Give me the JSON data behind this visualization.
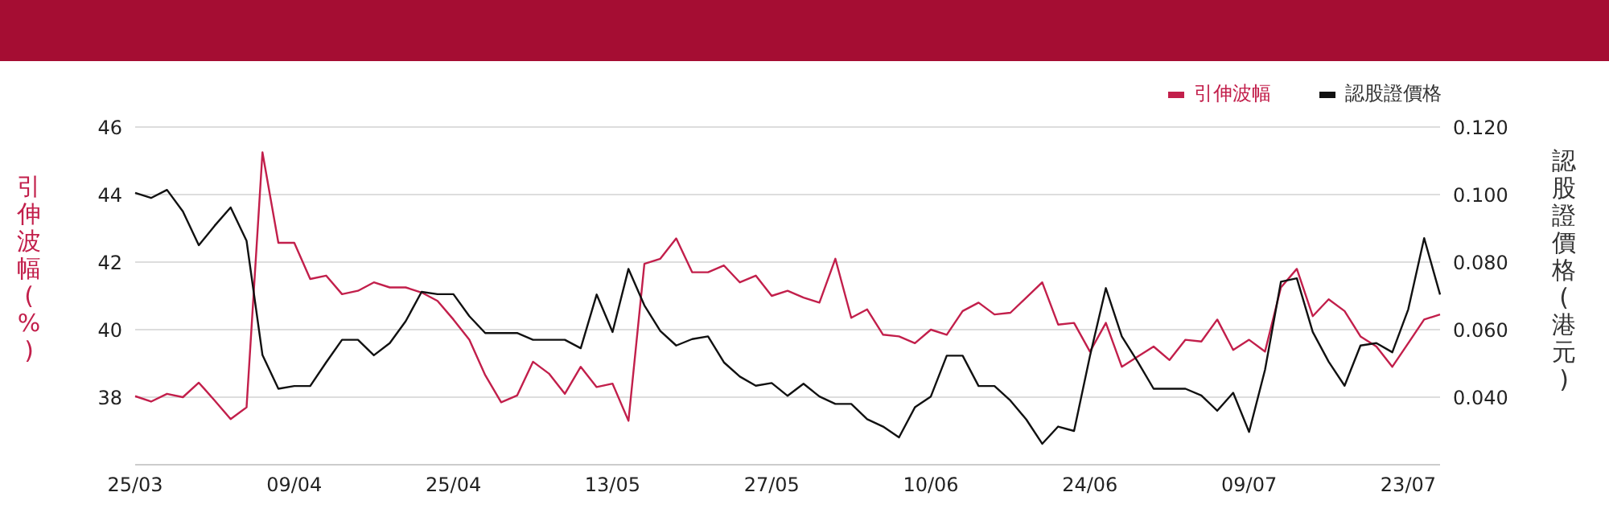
{
  "chart_data": {
    "type": "line",
    "ylabel": "引伸波幅(%)",
    "y2label": "認股證價格(港元)",
    "categories": [
      "25/03",
      null,
      null,
      null,
      null,
      null,
      null,
      null,
      null,
      null,
      "09/04",
      null,
      null,
      null,
      null,
      null,
      null,
      null,
      null,
      null,
      "25/04",
      null,
      null,
      null,
      null,
      null,
      null,
      null,
      null,
      null,
      "13/05",
      null,
      null,
      null,
      null,
      null,
      null,
      null,
      null,
      null,
      "27/05",
      null,
      null,
      null,
      null,
      null,
      null,
      null,
      null,
      null,
      "10/06",
      null,
      null,
      null,
      null,
      null,
      null,
      null,
      null,
      null,
      "24/06",
      null,
      null,
      null,
      null,
      null,
      null,
      null,
      null,
      null,
      "09/07",
      null,
      null,
      null,
      null,
      null,
      null,
      null,
      null,
      null,
      "23/07",
      null,
      null
    ],
    "series": [
      {
        "name": "引伸波幅",
        "color": "#c21f4b",
        "values": [
          38.03,
          37.87,
          38.1,
          38.0,
          38.43,
          37.9,
          37.35,
          37.7,
          45.25,
          42.57,
          42.57,
          41.5,
          41.6,
          41.05,
          41.15,
          41.4,
          41.25,
          41.25,
          41.1,
          40.85,
          40.3,
          39.7,
          38.65,
          37.85,
          38.05,
          39.05,
          38.7,
          38.1,
          38.9,
          38.3,
          38.4,
          37.3,
          41.95,
          42.1,
          42.7,
          41.7,
          41.7,
          41.9,
          41.4,
          41.6,
          41.0,
          41.15,
          40.95,
          40.8,
          42.1,
          40.35,
          40.6,
          39.85,
          39.8,
          39.6,
          40.0,
          39.85,
          40.55,
          40.8,
          40.45,
          40.5,
          40.95,
          41.4,
          40.15,
          40.2,
          39.35,
          40.2,
          38.9,
          39.2,
          39.5,
          39.1,
          39.7,
          39.65,
          40.3,
          39.4,
          39.7,
          39.35,
          41.25,
          41.8,
          40.4,
          40.9,
          40.55,
          39.8,
          39.5,
          38.9,
          39.6,
          40.3,
          40.45
        ]
      },
      {
        "name": "認股證價格",
        "color": "#111111",
        "axis": "y2",
        "values": [
          0.1005,
          0.099,
          0.1014,
          0.095,
          0.085,
          0.0908,
          0.0962,
          0.0863,
          0.0525,
          0.0425,
          0.0433,
          0.0433,
          0.0503,
          0.057,
          0.057,
          0.0524,
          0.056,
          0.0625,
          0.0712,
          0.0705,
          0.0705,
          0.064,
          0.059,
          0.059,
          0.059,
          0.057,
          0.057,
          0.057,
          0.0545,
          0.0704,
          0.0593,
          0.078,
          0.0672,
          0.0596,
          0.0553,
          0.0572,
          0.058,
          0.0503,
          0.0461,
          0.0434,
          0.0442,
          0.0404,
          0.044,
          0.0402,
          0.038,
          0.038,
          0.0335,
          0.0313,
          0.0281,
          0.037,
          0.0402,
          0.0523,
          0.0523,
          0.0433,
          0.0433,
          0.039,
          0.0334,
          0.0262,
          0.0313,
          0.03,
          0.0522,
          0.0723,
          0.058,
          0.0505,
          0.0425,
          0.0425,
          0.0425,
          0.0405,
          0.036,
          0.0413,
          0.0297,
          0.0481,
          0.0742,
          0.0752,
          0.0593,
          0.0505,
          0.0434,
          0.0553,
          0.056,
          0.0533,
          0.066,
          0.0871,
          0.0704
        ]
      }
    ],
    "ylim": [
      36,
      46
    ],
    "yticks": [
      38,
      40,
      42,
      44,
      46
    ],
    "y2lim": [
      0.02,
      0.12
    ],
    "y2ticks": [
      {
        "value": 0.04,
        "label": "0.040"
      },
      {
        "value": 0.06,
        "label": "0.060"
      },
      {
        "value": 0.08,
        "label": "0.080"
      },
      {
        "value": 0.1,
        "label": "0.100"
      },
      {
        "value": 0.12,
        "label": "0.120"
      }
    ],
    "grid": "y",
    "legend": "top right",
    "marker": "none",
    "line_style": "solid"
  }
}
